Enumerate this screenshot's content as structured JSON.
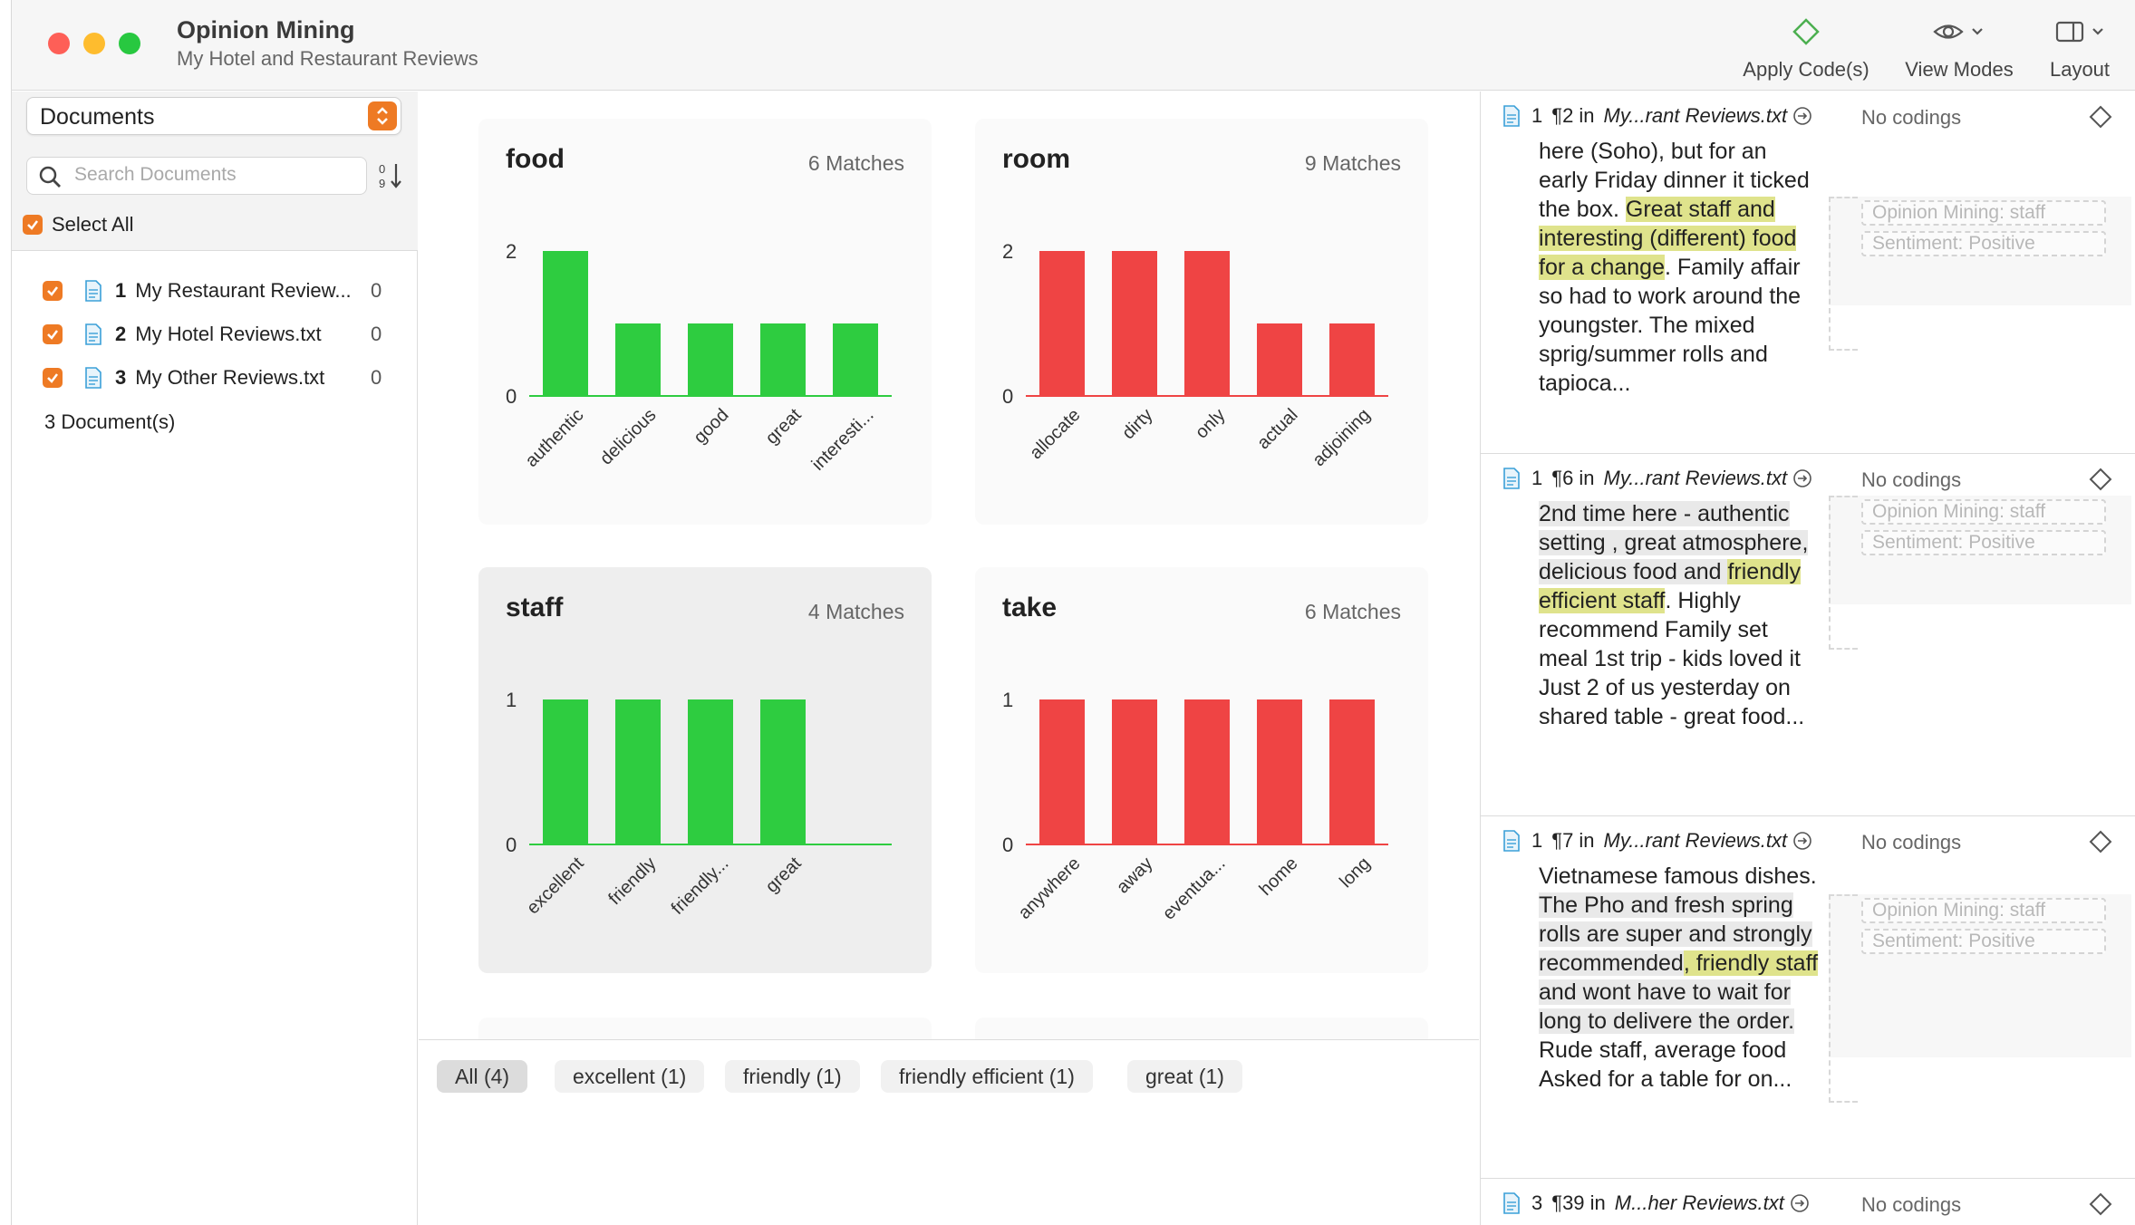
{
  "window": {
    "title": "Opinion Mining",
    "subtitle": "My Hotel and Restaurant Reviews"
  },
  "toolbar": {
    "apply_codes": "Apply Code(s)",
    "view_modes": "View Modes",
    "layout": "Layout"
  },
  "sidebar": {
    "selector": "Documents",
    "search_placeholder": "Search Documents",
    "select_all": "Select All",
    "documents": [
      {
        "num": "1",
        "name": "My Restaurant Review...",
        "count": "0"
      },
      {
        "num": "2",
        "name": "My Hotel Reviews.txt",
        "count": "0"
      },
      {
        "num": "3",
        "name": "My Other Reviews.txt",
        "count": "0"
      }
    ],
    "total": "3 Document(s)"
  },
  "colors": {
    "positive": "#2ecc40",
    "negative": "#ef4444",
    "accent": "#ee7a24",
    "highlight": "#dfe38c"
  },
  "chart_data": [
    {
      "type": "bar",
      "title": "food",
      "matches": "6 Matches",
      "categories": [
        "authentic",
        "delicious",
        "good",
        "great",
        "interesti..."
      ],
      "values": [
        2,
        1,
        1,
        1,
        1
      ],
      "yticks": [
        "2",
        "0"
      ],
      "ylim": [
        0,
        2
      ],
      "color": "#2ecc40",
      "slots": 5
    },
    {
      "type": "bar",
      "title": "room",
      "matches": "9 Matches",
      "categories": [
        "allocate",
        "dirty",
        "only",
        "actual",
        "adjoining"
      ],
      "values": [
        2,
        2,
        2,
        1,
        1
      ],
      "yticks": [
        "2",
        "0"
      ],
      "ylim": [
        0,
        2
      ],
      "color": "#ef4444",
      "slots": 5
    },
    {
      "type": "bar",
      "title": "staff",
      "matches": "4 Matches",
      "categories": [
        "excellent",
        "friendly",
        "friendly...",
        "great"
      ],
      "values": [
        1,
        1,
        1,
        1
      ],
      "yticks": [
        "1",
        "0"
      ],
      "ylim": [
        0,
        1
      ],
      "color": "#2ecc40",
      "slots": 5
    },
    {
      "type": "bar",
      "title": "take",
      "matches": "6 Matches",
      "categories": [
        "anywhere",
        "away",
        "eventua...",
        "home",
        "long"
      ],
      "values": [
        1,
        1,
        1,
        1,
        1
      ],
      "yticks": [
        "1",
        "0"
      ],
      "ylim": [
        0,
        1
      ],
      "color": "#ef4444",
      "slots": 5
    }
  ],
  "filters": [
    "All (4)",
    "excellent (1)",
    "friendly (1)",
    "friendly efficient (1)",
    "great (1)"
  ],
  "results": [
    {
      "doc": "1",
      "para": "¶2 in",
      "file": "My...rant Reviews.txt",
      "codings": "No codings",
      "segments": [
        {
          "t": "here (Soho), but for an early Friday dinner it ticked the box. ",
          "s": ""
        },
        {
          "t": "Great staff and interesting (different) food for a change",
          "s": "hl"
        },
        {
          "t": ". Family affair so had to work around the youngster. The mixed sprig/summer rolls and tapioca...",
          "s": ""
        }
      ],
      "codes": [
        "Opinion Mining: staff",
        "Sentiment: Positive"
      ]
    },
    {
      "doc": "1",
      "para": "¶6 in",
      "file": "My...rant Reviews.txt",
      "codings": "No codings",
      "segments": [
        {
          "t": "2nd time here - authentic setting , great atmosphere, delicious food and ",
          "s": "gr"
        },
        {
          "t": "friendly efficient staff",
          "s": "hl"
        },
        {
          "t": ". Highly recommend Family set meal 1st trip - kids loved it Just 2 of us yesterday on shared table - great food...",
          "s": ""
        }
      ],
      "codes": [
        "Opinion Mining: staff",
        "Sentiment: Positive"
      ]
    },
    {
      "doc": "1",
      "para": "¶7 in",
      "file": "My...rant Reviews.txt",
      "codings": "No codings",
      "segments": [
        {
          "t": "Vietnamese famous dishes. ",
          "s": ""
        },
        {
          "t": "The Pho and fresh spring rolls are super and strongly recommended",
          "s": "gr"
        },
        {
          "t": ", friendly staff",
          "s": "hl"
        },
        {
          "t": " and wont have to wait for long to delivere the order.",
          "s": "gr"
        },
        {
          "t": " Rude staff, average food Asked for a table for on...",
          "s": ""
        }
      ],
      "codes": [
        "Opinion Mining: staff",
        "Sentiment: Positive"
      ]
    },
    {
      "doc": "3",
      "para": "¶39 in",
      "file": "M...her Reviews.txt",
      "codings": "No codings",
      "segments": [],
      "codes": []
    }
  ]
}
